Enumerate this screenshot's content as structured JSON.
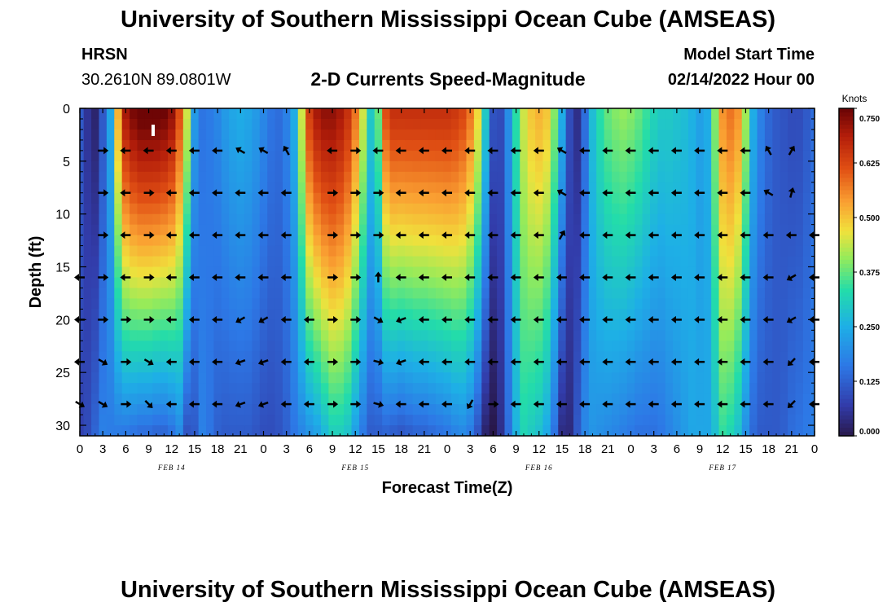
{
  "header": {
    "title": "University of Southern Mississippi Ocean Cube (AMSEAS)",
    "station": "HRSN",
    "coords": "30.2610N  89.0801W",
    "chart_title": "2-D Currents Speed-Magnitude",
    "model_start_label": "Model Start Time",
    "model_start_value": "02/14/2022 Hour 00"
  },
  "footer": {
    "title": "University of Southern Mississippi Ocean Cube (AMSEAS)"
  },
  "chart_data": {
    "type": "heatmap",
    "title": "2-D Currents Speed-Magnitude",
    "xlabel": "Forecast Time(Z)",
    "ylabel": "Depth (ft)",
    "xlim": [
      0,
      96
    ],
    "ylim": [
      31,
      0
    ],
    "x_ticks": [
      0,
      3,
      6,
      9,
      12,
      15,
      18,
      21,
      24,
      27,
      30,
      33,
      36,
      39,
      42,
      45,
      48,
      51,
      54,
      57,
      60,
      63,
      66,
      69,
      72,
      75,
      78,
      81,
      84,
      87,
      90,
      93,
      96
    ],
    "x_tick_labels": [
      "0",
      "3",
      "6",
      "9",
      "12",
      "15",
      "18",
      "21",
      "0",
      "3",
      "6",
      "9",
      "12",
      "15",
      "18",
      "21",
      "0",
      "3",
      "6",
      "9",
      "12",
      "15",
      "18",
      "21",
      "0",
      "3",
      "6",
      "9",
      "12",
      "15",
      "18",
      "21",
      "0"
    ],
    "date_labels": [
      {
        "x": 12,
        "text": "FEB 14"
      },
      {
        "x": 36,
        "text": "FEB 15"
      },
      {
        "x": 60,
        "text": "FEB 16"
      },
      {
        "x": 84,
        "text": "FEB 17"
      }
    ],
    "y_ticks": [
      0,
      5,
      10,
      15,
      20,
      25,
      30
    ],
    "colorbar": {
      "unit": "Knots",
      "min": 0.0,
      "max": 0.75,
      "tick_values": [
        0.0,
        0.125,
        0.25,
        0.375,
        0.5,
        0.625,
        0.75
      ],
      "tick_labels": [
        "0.000",
        "0.125",
        "0.250",
        "0.375",
        "0.500",
        "0.625",
        "0.750"
      ]
    },
    "speed_profile": {
      "description": "Approximate current speed (knots) vs forecast hour, at surface (depth 0 ft) and bottom (depth 30 ft)",
      "hours": [
        0,
        1,
        2,
        3,
        4,
        5,
        6,
        7,
        8,
        9,
        10,
        11,
        12,
        13,
        14,
        15,
        16,
        17,
        18,
        19,
        20,
        21,
        22,
        23,
        24,
        25,
        26,
        27,
        28,
        29,
        30,
        31,
        32,
        33,
        34,
        35,
        36,
        37,
        38,
        39,
        40,
        41,
        42,
        43,
        44,
        45,
        46,
        47,
        48,
        49,
        50,
        51,
        52,
        53,
        54,
        55,
        56,
        57,
        58,
        59,
        60,
        61,
        62,
        63,
        64,
        65,
        66,
        67,
        68,
        69,
        70,
        71,
        72,
        73,
        74,
        75,
        76,
        77,
        78,
        79,
        80,
        81,
        82,
        83,
        84,
        85,
        86,
        87,
        88,
        89,
        90,
        91,
        92,
        93,
        94,
        95,
        96
      ],
      "surface": [
        0.12,
        0.06,
        0.03,
        0.12,
        0.24,
        0.52,
        0.7,
        0.74,
        0.76,
        0.76,
        0.76,
        0.75,
        0.72,
        0.62,
        0.45,
        0.22,
        0.16,
        0.17,
        0.19,
        0.22,
        0.24,
        0.25,
        0.24,
        0.22,
        0.19,
        0.16,
        0.15,
        0.18,
        0.25,
        0.45,
        0.64,
        0.7,
        0.72,
        0.72,
        0.7,
        0.66,
        0.58,
        0.45,
        0.3,
        0.38,
        0.62,
        0.66,
        0.66,
        0.66,
        0.66,
        0.66,
        0.66,
        0.66,
        0.66,
        0.65,
        0.63,
        0.58,
        0.48,
        0.3,
        0.11,
        0.1,
        0.2,
        0.34,
        0.45,
        0.5,
        0.52,
        0.5,
        0.4,
        0.25,
        0.1,
        0.05,
        0.15,
        0.28,
        0.34,
        0.38,
        0.4,
        0.41,
        0.4,
        0.38,
        0.35,
        0.32,
        0.3,
        0.3,
        0.29,
        0.28,
        0.26,
        0.23,
        0.25,
        0.4,
        0.55,
        0.58,
        0.55,
        0.42,
        0.25,
        0.18,
        0.14,
        0.12,
        0.11,
        0.1,
        0.1,
        0.12,
        0.15
      ],
      "bottom": [
        0.08,
        0.1,
        0.14,
        0.18,
        0.17,
        0.16,
        0.15,
        0.14,
        0.13,
        0.13,
        0.12,
        0.12,
        0.14,
        0.18,
        0.1,
        0.12,
        0.18,
        0.16,
        0.13,
        0.12,
        0.12,
        0.12,
        0.12,
        0.11,
        0.1,
        0.1,
        0.11,
        0.13,
        0.16,
        0.18,
        0.2,
        0.22,
        0.26,
        0.3,
        0.3,
        0.28,
        0.22,
        0.16,
        0.12,
        0.12,
        0.12,
        0.11,
        0.1,
        0.11,
        0.12,
        0.12,
        0.13,
        0.14,
        0.15,
        0.17,
        0.18,
        0.16,
        0.1,
        0.02,
        0.0,
        0.05,
        0.15,
        0.26,
        0.32,
        0.3,
        0.28,
        0.24,
        0.15,
        0.04,
        0.04,
        0.12,
        0.19,
        0.21,
        0.2,
        0.19,
        0.18,
        0.17,
        0.16,
        0.15,
        0.15,
        0.15,
        0.16,
        0.18,
        0.2,
        0.22,
        0.24,
        0.24,
        0.24,
        0.28,
        0.34,
        0.32,
        0.28,
        0.2,
        0.14,
        0.12,
        0.12,
        0.12,
        0.13,
        0.15,
        0.16,
        0.17,
        0.18
      ]
    },
    "vectors": {
      "description": "Current direction arrows: angle in degrees (0 = east/right, 90 = north/up) per forecast hour column and depth (ft)",
      "depths": [
        4,
        8,
        12,
        16,
        20,
        24,
        28
      ],
      "hours": [
        0,
        3,
        6,
        9,
        12,
        15,
        18,
        21,
        24,
        27,
        30,
        33,
        36,
        39,
        42,
        45,
        48,
        51,
        54,
        57,
        60,
        63,
        66,
        69,
        72,
        75,
        78,
        81,
        84,
        87,
        90,
        93,
        96
      ],
      "angles": [
        [
          null,
          0,
          180,
          180,
          180,
          180,
          180,
          150,
          150,
          120,
          null,
          180,
          0,
          180,
          180,
          180,
          180,
          180,
          180,
          180,
          180,
          150,
          180,
          180,
          180,
          180,
          180,
          180,
          180,
          180,
          120,
          60,
          null
        ],
        [
          null,
          0,
          180,
          0,
          180,
          180,
          180,
          180,
          180,
          180,
          null,
          0,
          0,
          0,
          180,
          180,
          180,
          180,
          180,
          180,
          180,
          150,
          180,
          180,
          180,
          180,
          180,
          180,
          180,
          180,
          150,
          75,
          null
        ],
        [
          null,
          0,
          180,
          0,
          180,
          180,
          180,
          180,
          180,
          180,
          null,
          0,
          0,
          0,
          180,
          180,
          180,
          180,
          180,
          180,
          180,
          60,
          180,
          180,
          180,
          180,
          180,
          180,
          180,
          180,
          180,
          180,
          180
        ],
        [
          180,
          0,
          180,
          0,
          180,
          180,
          180,
          180,
          180,
          180,
          null,
          0,
          0,
          90,
          180,
          180,
          180,
          180,
          180,
          180,
          180,
          180,
          180,
          180,
          180,
          180,
          180,
          180,
          180,
          180,
          180,
          210,
          180
        ],
        [
          180,
          0,
          0,
          0,
          180,
          180,
          180,
          210,
          210,
          180,
          180,
          0,
          0,
          330,
          200,
          180,
          180,
          180,
          180,
          180,
          180,
          180,
          180,
          180,
          180,
          180,
          180,
          180,
          180,
          180,
          180,
          210,
          180
        ],
        [
          180,
          330,
          0,
          330,
          180,
          180,
          180,
          200,
          200,
          180,
          180,
          0,
          0,
          345,
          200,
          180,
          180,
          180,
          180,
          180,
          180,
          180,
          180,
          180,
          180,
          180,
          180,
          180,
          180,
          180,
          180,
          225,
          180
        ],
        [
          330,
          330,
          0,
          315,
          180,
          180,
          180,
          200,
          200,
          180,
          180,
          0,
          0,
          345,
          180,
          180,
          180,
          240,
          0,
          180,
          180,
          180,
          180,
          180,
          180,
          180,
          180,
          180,
          180,
          180,
          180,
          225,
          180
        ]
      ]
    },
    "marker": {
      "x": 9,
      "y": 2,
      "text": ""
    }
  }
}
